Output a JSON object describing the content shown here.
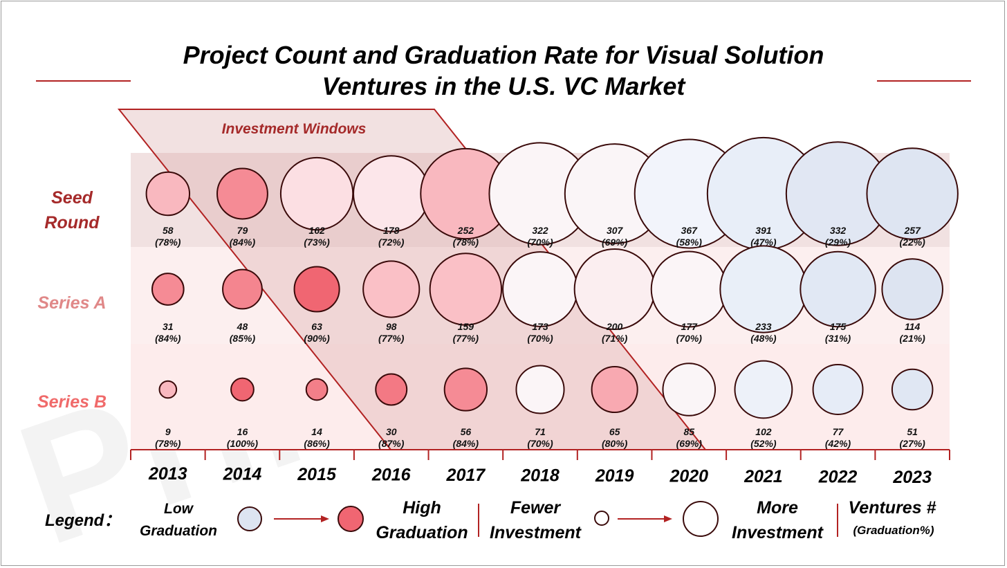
{
  "watermark": "Primitiva",
  "chart_data": {
    "type": "bubble-matrix",
    "title": [
      "Project Count and Graduation Rate for Visual Solution",
      "Ventures in the U.S. VC Market"
    ],
    "investment_windows_label": "Investment Windows",
    "years": [
      "2013",
      "2014",
      "2015",
      "2016",
      "2017",
      "2018",
      "2019",
      "2020",
      "2021",
      "2022",
      "2023"
    ],
    "series": [
      {
        "name": "Seed Round",
        "label_lines": [
          "Seed",
          "Round"
        ],
        "label_color": "#a52a2a",
        "ventures": [
          58,
          79,
          162,
          178,
          252,
          322,
          307,
          367,
          391,
          332,
          257
        ],
        "graduation": [
          78,
          84,
          73,
          72,
          78,
          70,
          69,
          58,
          47,
          29,
          22
        ],
        "labels_count": [
          "58",
          "79",
          "162",
          "178",
          "252",
          "322",
          "307",
          "367",
          "391",
          "332",
          "257"
        ],
        "labels_grad": [
          "(78%)",
          "(84%)",
          "(73%)",
          "(72%)",
          "(78%)",
          "(70%)",
          "(69%)",
          "(58%)",
          "(47%)",
          "(29%)",
          "(22%)"
        ]
      },
      {
        "name": "Series A",
        "label_lines": [
          "Series A"
        ],
        "label_color": "#e08888",
        "ventures": [
          31,
          48,
          63,
          98,
          159,
          173,
          200,
          177,
          233,
          175,
          114
        ],
        "graduation": [
          84,
          85,
          90,
          77,
          77,
          70,
          71,
          70,
          48,
          31,
          21
        ],
        "labels_count": [
          "31",
          "48",
          "63",
          "98",
          "159",
          "173",
          "200",
          "177",
          "233",
          "175",
          "114"
        ],
        "labels_grad": [
          "(84%)",
          "(85%)",
          "(90%)",
          "(77%)",
          "(77%)",
          "(70%)",
          "(71%)",
          "(70%)",
          "(48%)",
          "(31%)",
          "(21%)"
        ]
      },
      {
        "name": "Series B",
        "label_lines": [
          "Series B"
        ],
        "label_color": "#f06a6a",
        "ventures": [
          9,
          16,
          14,
          30,
          56,
          71,
          65,
          85,
          102,
          77,
          51
        ],
        "graduation": [
          78,
          100,
          86,
          87,
          84,
          70,
          80,
          69,
          52,
          42,
          27
        ],
        "labels_count": [
          "9",
          "16",
          "14",
          "30",
          "56",
          "71",
          "65",
          "85",
          "102",
          "77",
          "51"
        ],
        "labels_grad": [
          "(78%)",
          "(100%)",
          "(86%)",
          "(87%)",
          "(84%)",
          "(70%)",
          "(80%)",
          "(69%)",
          "(52%)",
          "(42%)",
          "(27%)"
        ]
      }
    ],
    "legend": {
      "title": "Legend：",
      "low_graduation": [
        "Low",
        "Graduation"
      ],
      "high_graduation": [
        "High",
        "Graduation"
      ],
      "fewer_investment": [
        "Fewer",
        "Investment"
      ],
      "more_investment": [
        "More",
        "Investment"
      ],
      "key_lines": [
        "Ventures #",
        "(Graduation%)"
      ]
    }
  },
  "colors": {
    "accent": "#b22222",
    "bubble_outline": "#3a0a0a",
    "row_seed_bg": "#f1e1e1",
    "row_a_bg": "#fcefef",
    "row_b_bg": "#fdecec",
    "window_fill": "#dba8a8"
  }
}
